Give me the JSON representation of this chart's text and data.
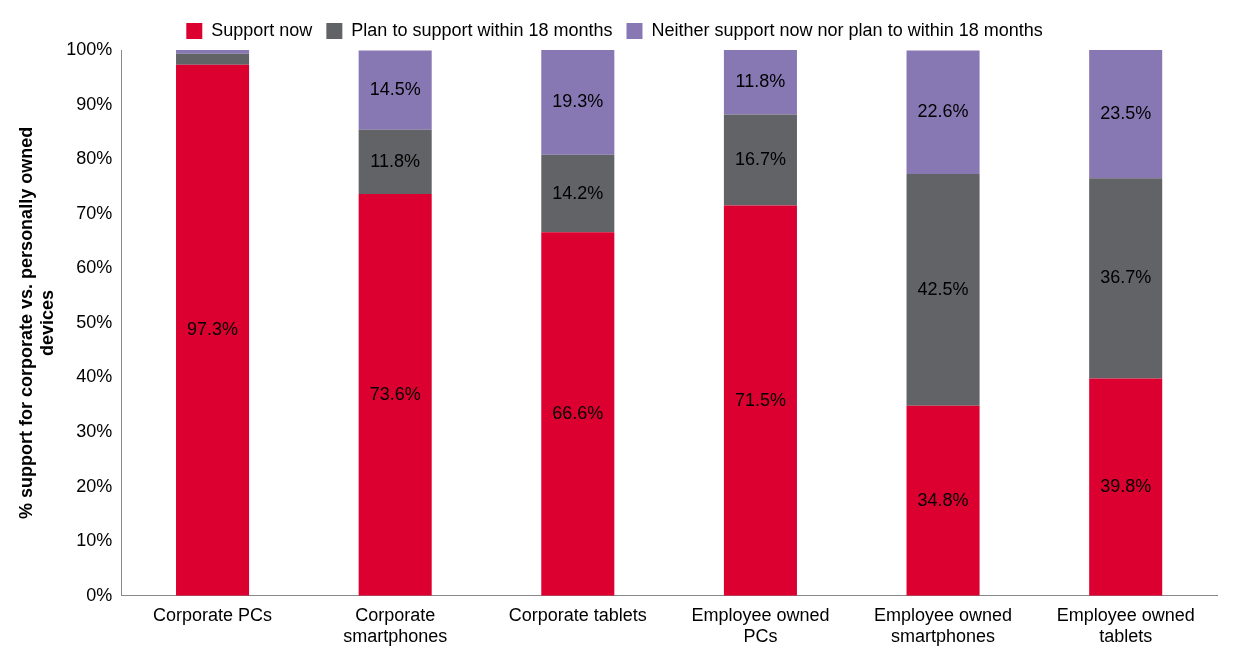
{
  "chart_data": {
    "type": "bar",
    "stacked": true,
    "ylabel": "% support for corporate vs. personally owned devices",
    "categories": [
      "Corporate PCs",
      "Corporate smartphones",
      "Corporate tablets",
      "Employee owned PCs",
      "Employee owned smartphones",
      "Employee owned tablets"
    ],
    "series": [
      {
        "name": "Support now",
        "color": "#dc0030",
        "values": [
          97.3,
          73.6,
          66.6,
          71.5,
          34.8,
          39.8
        ],
        "value_labels": [
          "97.3%",
          "73.6%",
          "66.6%",
          "71.5%",
          "34.8%",
          "39.8%"
        ]
      },
      {
        "name": "Plan to support within 18 months",
        "color": "#616366",
        "values": [
          2,
          11.8,
          14.2,
          16.7,
          42.5,
          36.7
        ],
        "value_labels": [
          null,
          "11.8%",
          "14.2%",
          "16.7%",
          "42.5%",
          "36.7%"
        ]
      },
      {
        "name": "Neither support now nor plan to within 18 months",
        "color": "#8778b4",
        "values": [
          0.7,
          14.5,
          19.3,
          11.8,
          22.6,
          23.5
        ],
        "value_labels": [
          null,
          "14.5%",
          "19.3%",
          "11.8%",
          "22.6%",
          "23.5%"
        ]
      }
    ],
    "ylim": [
      0,
      100
    ],
    "yticks": [
      {
        "value": 0,
        "label": "0%"
      },
      {
        "value": 10,
        "label": "10%"
      },
      {
        "value": 20,
        "label": "20%"
      },
      {
        "value": 30,
        "label": "30%"
      },
      {
        "value": 40,
        "label": "40%"
      },
      {
        "value": 50,
        "label": "50%"
      },
      {
        "value": 60,
        "label": "60%"
      },
      {
        "value": 70,
        "label": "70%"
      },
      {
        "value": 80,
        "label": "80%"
      },
      {
        "value": 90,
        "label": "90%"
      },
      {
        "value": 100,
        "label": "100%"
      }
    ],
    "grid": false,
    "legend": "top"
  }
}
